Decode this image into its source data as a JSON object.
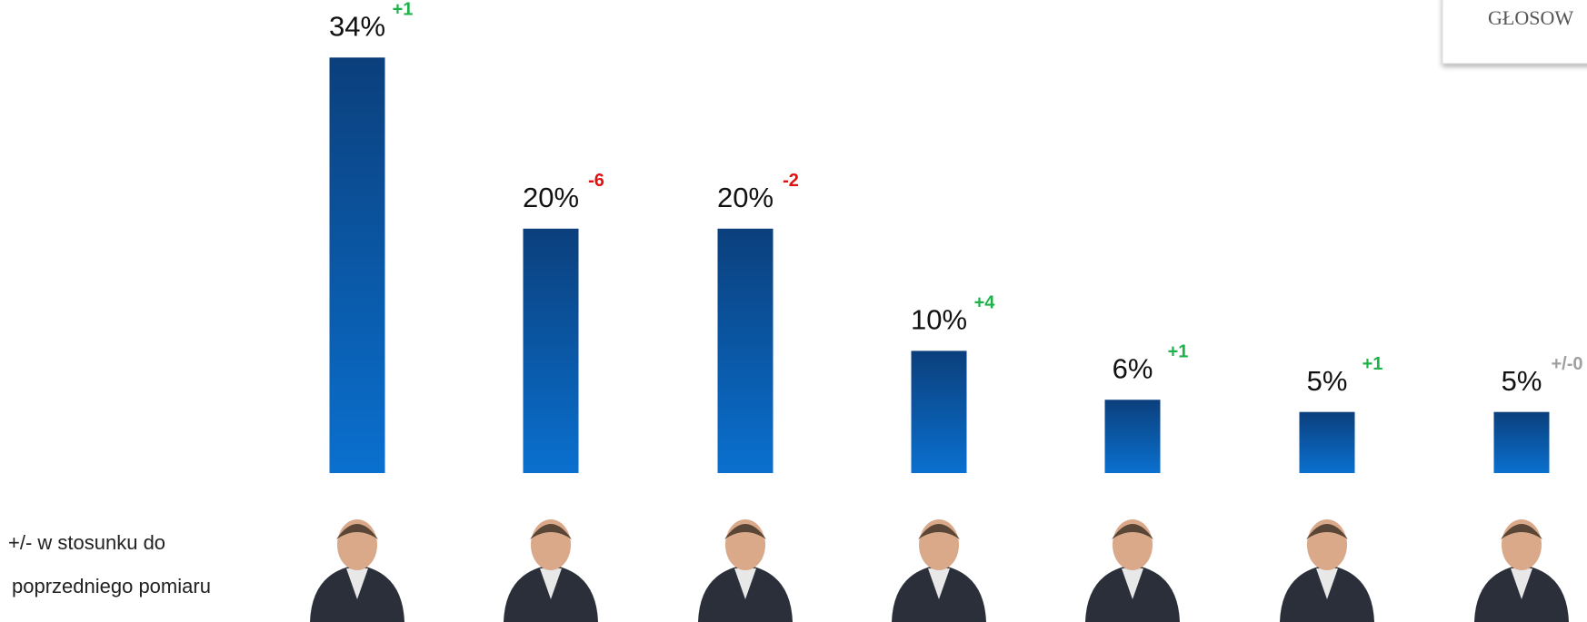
{
  "chart_data": {
    "type": "bar",
    "categories": [
      null,
      null,
      null,
      null,
      null,
      null,
      null
    ],
    "values": [
      34,
      20,
      20,
      10,
      6,
      5,
      5
    ],
    "value_labels": [
      "34%",
      "20%",
      "20%",
      "10%",
      "6%",
      "5%",
      "5%"
    ],
    "changes": [
      1,
      -6,
      -2,
      4,
      1,
      1,
      0
    ],
    "change_labels": [
      "+1",
      "-6",
      "-2",
      "+4",
      "+1",
      "+1",
      "+/-0"
    ],
    "note": [
      "+/- w stosunku do",
      "poprzedniego pomiaru"
    ],
    "box_label": "GŁOSOW"
  }
}
